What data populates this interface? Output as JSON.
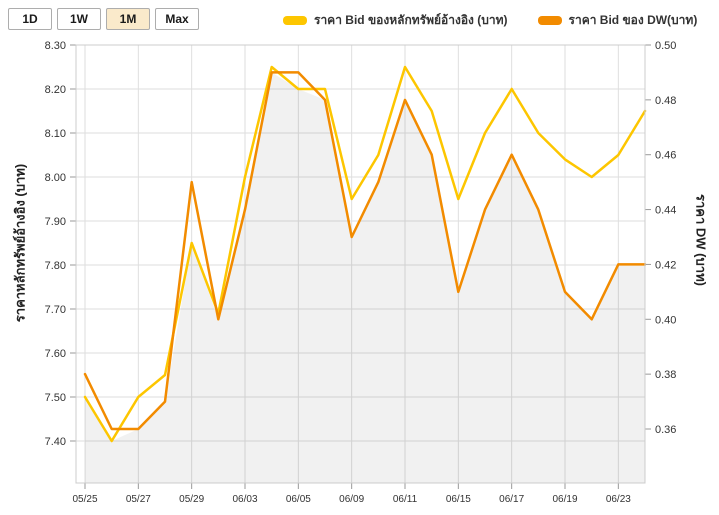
{
  "toolbar": {
    "ranges": [
      {
        "label": "1D",
        "active": false
      },
      {
        "label": "1W",
        "active": false
      },
      {
        "label": "1M",
        "active": true
      },
      {
        "label": "Max",
        "active": false
      }
    ],
    "active_bg": "#faeacb"
  },
  "legend": [
    {
      "label": "ราคา Bid ของหลักทรัพย์อ้างอิง (บาท)",
      "color": "#fdc600"
    },
    {
      "label": "ราคา Bid ของ DW(บาท)",
      "color": "#f28b00"
    }
  ],
  "chart_data": {
    "type": "line",
    "title": "",
    "x_tick_labels": [
      "05/25",
      "05/27",
      "05/29",
      "06/03",
      "06/05",
      "06/09",
      "06/11",
      "06/15",
      "06/17",
      "06/19",
      "06/23"
    ],
    "points_per_x_label": 2,
    "series": [
      {
        "name": "ราคา Bid ของหลักทรัพย์อ้างอิง (บาท)",
        "axis": "left",
        "color": "#fdc600",
        "values": [
          7.5,
          7.4,
          7.5,
          7.55,
          7.85,
          7.69,
          8.0,
          8.25,
          8.2,
          8.2,
          7.95,
          8.05,
          8.25,
          8.15,
          7.95,
          8.1,
          8.2,
          8.1,
          8.04,
          8.0,
          8.05,
          8.15
        ]
      },
      {
        "name": "ราคา Bid ของ DW(บาท)",
        "axis": "right",
        "color": "#f28b00",
        "values": [
          0.38,
          0.36,
          0.36,
          0.37,
          0.45,
          0.4,
          0.44,
          0.49,
          0.49,
          0.48,
          0.43,
          0.45,
          0.48,
          0.46,
          0.41,
          0.44,
          0.46,
          0.44,
          0.41,
          0.4,
          0.42,
          0.42
        ]
      }
    ],
    "left_axis": {
      "title": "ราคาหลักทรัพย์อ้างอิง (บาท)",
      "min": 7.4,
      "max": 8.3,
      "tick_labels": [
        "8.30",
        "8.20",
        "8.10",
        "8.00",
        "7.90",
        "7.80",
        "7.70",
        "7.60",
        "7.50",
        "7.40"
      ]
    },
    "right_axis": {
      "title": "ราคา DW (บาท)",
      "min": 0.36,
      "max": 0.5,
      "tick_labels": [
        "0.50",
        "0.48",
        "0.46",
        "0.44",
        "0.42",
        "0.40",
        "0.38",
        "0.36"
      ]
    },
    "grid": true,
    "legend_position": "top",
    "area_fill": "below both series",
    "colors": {
      "grid": "#dedede",
      "border": "#cccccc",
      "tick": "#999999",
      "tick_text": "#333333",
      "area": "rgba(0,0,0,0.055)"
    }
  }
}
